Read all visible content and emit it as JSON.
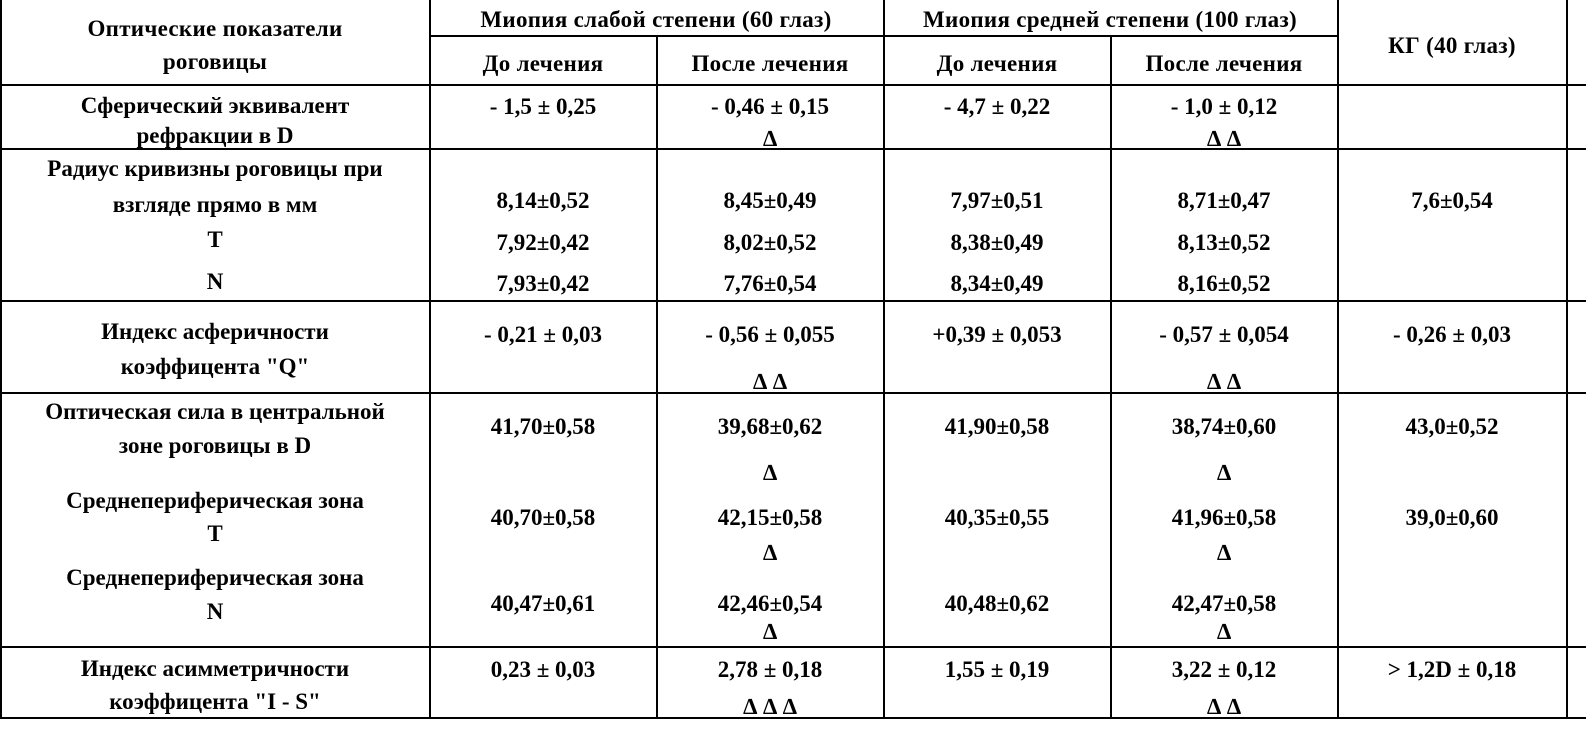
{
  "header": {
    "col_param": [
      "Оптические показатели",
      "роговицы"
    ],
    "group_weak": "Миопия слабой степени  (60 глаз)",
    "group_mid": "Миопия средней степени (100 глаз)",
    "before": "До лечения",
    "after": "После лечения",
    "kg": "КГ (40 глаз)"
  },
  "rows": {
    "seq": {
      "label": [
        "Сферический эквивалент",
        "рефракции в D"
      ],
      "w_before": "- 1,5 ± 0,25",
      "w_after": "- 0,46 ± 0,15",
      "w_after_mark": "∆",
      "m_before": "- 4,7 ± 0,22",
      "m_after": "- 1,0 ± 0,12",
      "m_after_mark": "∆ ∆"
    },
    "radius": {
      "label": [
        "Радиус кривизны роговицы при",
        "взгляде прямо в мм",
        "T",
        "N"
      ],
      "w_before": [
        "8,14±0,52",
        "7,92±0,42",
        "7,93±0,42"
      ],
      "w_after": [
        "8,45±0,49",
        "8,02±0,52",
        "7,76±0,54"
      ],
      "m_before": [
        "7,97±0,51",
        "8,38±0,49",
        "8,34±0,49"
      ],
      "m_after": [
        "8,71±0,47",
        "8,13±0,52",
        "8,16±0,52"
      ],
      "kg": "7,6±0,54"
    },
    "q": {
      "label": [
        "Индекс асферичности",
        "коэффицента \"Q\""
      ],
      "w_before": "- 0,21 ± 0,03",
      "w_after": "- 0,56 ± 0,055",
      "w_after_mark": "∆ ∆",
      "m_before": "+0,39 ± 0,053",
      "m_after": "- 0,57 ± 0,054",
      "m_after_mark": "∆ ∆",
      "kg": "- 0,26 ± 0,03"
    },
    "power": {
      "label_central": [
        "Оптическая сила в центральной",
        "зоне роговицы в D"
      ],
      "label_t": [
        "Среднепериферическая зона",
        "T"
      ],
      "label_n": [
        "Среднепериферическая зона",
        "N"
      ],
      "w_before": [
        "41,70±0,58",
        "40,70±0,58",
        "40,47±0,61"
      ],
      "w_after": [
        "39,68±0,62",
        "42,15±0,58",
        "42,46±0,54"
      ],
      "w_after_marks": [
        "∆",
        "∆",
        "∆"
      ],
      "m_before": [
        "41,90±0,58",
        "40,35±0,55",
        "40,48±0,62"
      ],
      "m_after": [
        "38,74±0,60",
        "41,96±0,58",
        "42,47±0,58"
      ],
      "m_after_marks": [
        "∆",
        "∆",
        "∆"
      ],
      "kg": [
        "43,0±0,52",
        "39,0±0,60"
      ]
    },
    "is": {
      "label": [
        "Индекс асимметричности",
        "коэффицента \"I - S\""
      ],
      "w_before": "0,23 ± 0,03",
      "w_after": "2,78 ± 0,18",
      "w_after_mark": "∆ ∆ ∆",
      "m_before": "1,55 ± 0,19",
      "m_after": "3,22 ± 0,12",
      "m_after_mark": "∆ ∆",
      "kg": "> 1,2D ± 0,18"
    }
  }
}
